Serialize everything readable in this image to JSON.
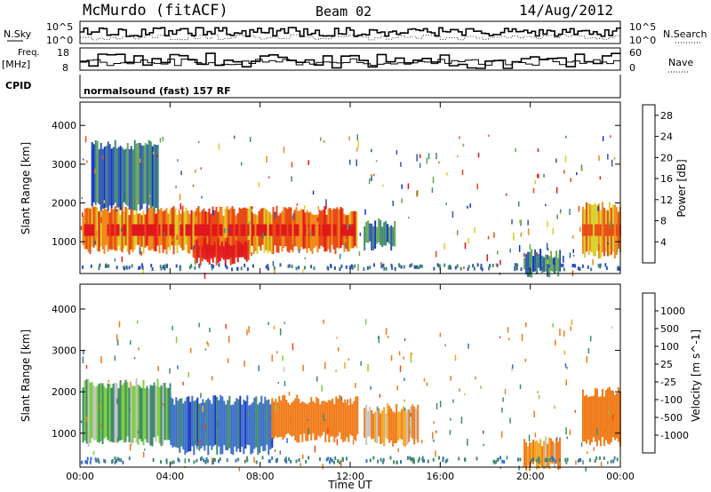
{
  "header": {
    "station": "McMurdo (fitACF)",
    "beam": "Beam 02",
    "date": "14/Aug/2012"
  },
  "top_panels": {
    "nsky_label": "N.Sky",
    "nsearch_label": "N.Search",
    "freq_label_line1": "Freq.",
    "freq_label_line2": "[MHz]",
    "nave_label": "Nave",
    "cpid_label": "CPID",
    "cpid_value": "normalsound (fast) 157 RF",
    "noise_left_ticks": [
      "10^5",
      "10^0"
    ],
    "noise_right_ticks": [
      "10^5",
      "10^0"
    ],
    "freq_ticks": [
      "18",
      "8"
    ],
    "nave_ticks": [
      "60",
      "0"
    ]
  },
  "chart_data": [
    {
      "type": "heatmap",
      "title": "",
      "xlabel": "Time UT",
      "ylabel": "Slant Range [km]",
      "xlim": [
        "00:00",
        "24:00"
      ],
      "ylim": [
        180,
        4600
      ],
      "x_ticks": [
        "00:00",
        "04:00",
        "08:00",
        "12:00",
        "16:00",
        "20:00",
        "00:00"
      ],
      "y_ticks": [
        1000,
        2000,
        3000,
        4000
      ],
      "colorbar": {
        "label": "Power [dB]",
        "ticks": [
          4,
          8,
          12,
          16,
          20,
          24,
          28
        ],
        "range": [
          0,
          30
        ],
        "colors": [
          "#1030d0",
          "#2f55b0",
          "#3f8a6f",
          "#64a851",
          "#d8d02a",
          "#f08a1a",
          "#e84a16",
          "#e0181c"
        ]
      },
      "regions": [
        {
          "x": [
            0.1,
            12.3
          ],
          "y": [
            800,
            1800
          ],
          "value": 22
        },
        {
          "x": [
            5.0,
            7.5
          ],
          "y": [
            500,
            1000
          ],
          "value": 28
        },
        {
          "x": [
            0.5,
            3.5
          ],
          "y": [
            1900,
            3500
          ],
          "value": 8
        },
        {
          "x": [
            12.6,
            14.0
          ],
          "y": [
            900,
            1500
          ],
          "value": 8
        },
        {
          "x": [
            19.7,
            21.3
          ],
          "y": [
            200,
            700
          ],
          "value": 8
        },
        {
          "x": [
            22.3,
            24.0
          ],
          "y": [
            700,
            1900
          ],
          "value": 20
        }
      ]
    },
    {
      "type": "heatmap",
      "title": "",
      "xlabel": "Time UT",
      "ylabel": "Slant Range [km]",
      "xlim": [
        "00:00",
        "24:00"
      ],
      "ylim": [
        180,
        4600
      ],
      "x_ticks": [
        "00:00",
        "04:00",
        "08:00",
        "12:00",
        "16:00",
        "20:00",
        "00:00"
      ],
      "y_ticks": [
        1000,
        2000,
        3000,
        4000
      ],
      "colorbar": {
        "label": "Velocity [m s^-1]",
        "ticks": [
          1000,
          500,
          100,
          25,
          -25,
          -100,
          -500,
          -1000
        ],
        "colors": [
          "#1836c0",
          "#3a6ec8",
          "#3f8a6f",
          "#7ecf3e",
          "#c4c4c4",
          "#f5a623",
          "#f07a18",
          "#e84a16",
          "#e0181c"
        ]
      },
      "regions": [
        {
          "x": [
            0.1,
            4.0
          ],
          "y": [
            800,
            2200
          ],
          "value": 100
        },
        {
          "x": [
            4.0,
            8.5
          ],
          "y": [
            600,
            1800
          ],
          "value": 700
        },
        {
          "x": [
            8.5,
            12.3
          ],
          "y": [
            900,
            1800
          ],
          "value": -200
        },
        {
          "x": [
            12.6,
            15.0
          ],
          "y": [
            800,
            1600
          ],
          "value": -100
        },
        {
          "x": [
            19.7,
            21.3
          ],
          "y": [
            200,
            800
          ],
          "value": -100
        },
        {
          "x": [
            22.3,
            24.0
          ],
          "y": [
            800,
            2000
          ],
          "value": -200
        }
      ]
    }
  ]
}
